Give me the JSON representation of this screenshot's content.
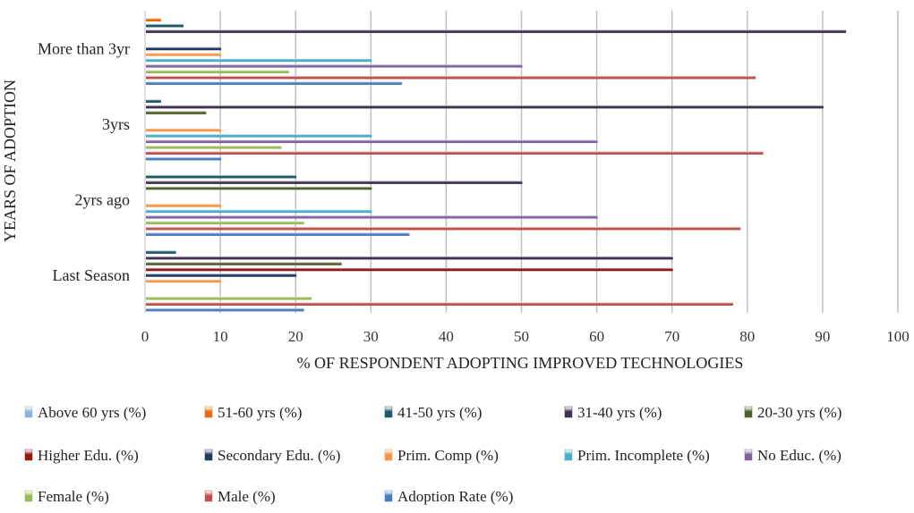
{
  "chart_data": {
    "type": "bar",
    "orientation": "horizontal",
    "xlabel": "% OF RESPONDENT ADOPTING IMPROVED TECHNOLOGIES",
    "ylabel": "YEARS OF ADOPTION",
    "xlim": [
      0,
      100
    ],
    "xticks": [
      "0",
      "10",
      "20",
      "30",
      "40",
      "50",
      "60",
      "70",
      "80",
      "90",
      "100"
    ],
    "grid": true,
    "legend_position": "bottom",
    "categories": [
      "Last Season",
      "2yrs ago",
      "3yrs",
      "More than 3yr"
    ],
    "series": [
      {
        "name": "Adoption Rate (%)",
        "color": "#4a7cc0",
        "values": [
          21,
          35,
          10,
          34
        ]
      },
      {
        "name": "Male (%)",
        "color": "#c0504d",
        "values": [
          78,
          79,
          82,
          81
        ]
      },
      {
        "name": "Female (%)",
        "color": "#9bbb59",
        "values": [
          22,
          21,
          18,
          19
        ]
      },
      {
        "name": "No Educ. (%)",
        "color": "#8064a2",
        "values": [
          0,
          60,
          60,
          50
        ]
      },
      {
        "name": "Prim. Incomplete (%)",
        "color": "#4bacc6",
        "values": [
          0,
          30,
          30,
          30
        ]
      },
      {
        "name": "Prim. Comp (%)",
        "color": "#f79646",
        "values": [
          10,
          10,
          10,
          10
        ]
      },
      {
        "name": "Secondary Edu. (%)",
        "color": "#1f3864",
        "values": [
          20,
          0,
          0,
          10
        ]
      },
      {
        "name": "Higher Edu. (%)",
        "color": "#8b1a1a",
        "values": [
          70,
          0,
          0,
          0
        ]
      },
      {
        "name": "20-30 yrs (%)",
        "color": "#4f6228",
        "values": [
          26,
          30,
          8,
          0
        ]
      },
      {
        "name": "31-40 yrs (%)",
        "color": "#3f3151",
        "values": [
          70,
          50,
          90,
          93
        ]
      },
      {
        "name": "41-50 yrs (%)",
        "color": "#215968",
        "values": [
          4,
          20,
          2,
          5
        ]
      },
      {
        "name": "51-60 yrs (%)",
        "color": "#e46c0a",
        "values": [
          0,
          0,
          0,
          2
        ]
      },
      {
        "name": "Above 60 yrs (%)",
        "color": "#95b3d7",
        "values": [
          0,
          0,
          0,
          0
        ]
      }
    ],
    "legend_order": [
      "Above 60 yrs (%)",
      "51-60 yrs (%)",
      "41-50 yrs (%)",
      "31-40 yrs (%)",
      "20-30 yrs (%)",
      "Higher Edu. (%)",
      "Secondary Edu. (%)",
      "Prim. Comp (%)",
      "Prim. Incomplete (%)",
      "No Educ. (%)",
      "Female (%)",
      "Male (%)",
      "Adoption Rate (%)"
    ]
  }
}
